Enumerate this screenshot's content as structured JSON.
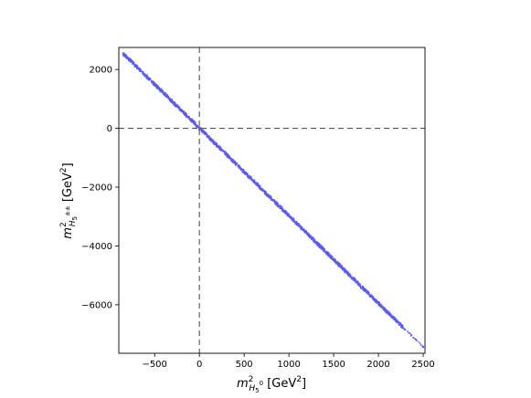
{
  "chart_data": {
    "type": "scatter",
    "title": "",
    "xlabel": {
      "main": "m",
      "sup": "2",
      "sub_base": "H",
      "sub_index": "5",
      "sub_charge": "0",
      "unit_open": " [GeV",
      "unit_sup": "2",
      "unit_close": "]"
    },
    "ylabel": {
      "main": "m",
      "sup": "2",
      "sub_base": "H",
      "sub_index": "5",
      "sub_charge": "±±",
      "unit_open": "  [GeV",
      "unit_sup": "2",
      "unit_close": "]"
    },
    "xlim": [
      -900,
      2520
    ],
    "ylim": [
      -7650,
      2750
    ],
    "xticks": [
      {
        "value": -500,
        "label": "−500"
      },
      {
        "value": 0,
        "label": "0"
      },
      {
        "value": 500,
        "label": "500"
      },
      {
        "value": 1000,
        "label": "1000"
      },
      {
        "value": 1500,
        "label": "1500"
      },
      {
        "value": 2000,
        "label": "2000"
      },
      {
        "value": 2500,
        "label": "2500"
      }
    ],
    "yticks": [
      {
        "value": 2000,
        "label": "2000"
      },
      {
        "value": 0,
        "label": "0"
      },
      {
        "value": -2000,
        "label": "−2000"
      },
      {
        "value": -4000,
        "label": "−4000"
      },
      {
        "value": -6000,
        "label": "−6000"
      }
    ],
    "reference_lines": [
      {
        "orientation": "vertical",
        "value": 0,
        "style": "dashed",
        "color": "#555555"
      },
      {
        "orientation": "horizontal",
        "value": 0,
        "style": "dashed",
        "color": "#555555"
      }
    ],
    "series": [
      {
        "color": "#5b5bf5",
        "relation": "approximately linear band",
        "x_range": [
          -850,
          2500
        ],
        "dense_x_range": [
          -850,
          2270
        ],
        "slope": -2.98,
        "intercept": 10,
        "band_halfwidth_y": 60,
        "points": [
          {
            "x": -850,
            "y": 2540
          },
          {
            "x": -700,
            "y": 2100
          },
          {
            "x": -500,
            "y": 1500
          },
          {
            "x": -250,
            "y": 750
          },
          {
            "x": 0,
            "y": 10
          },
          {
            "x": 250,
            "y": -740
          },
          {
            "x": 500,
            "y": -1480
          },
          {
            "x": 750,
            "y": -2230
          },
          {
            "x": 1000,
            "y": -2970
          },
          {
            "x": 1250,
            "y": -3720
          },
          {
            "x": 1500,
            "y": -4460
          },
          {
            "x": 1750,
            "y": -5210
          },
          {
            "x": 2000,
            "y": -5950
          },
          {
            "x": 2270,
            "y": -6750
          },
          {
            "x": 2500,
            "y": -7440
          }
        ]
      }
    ],
    "grid": false,
    "legend": "none"
  }
}
